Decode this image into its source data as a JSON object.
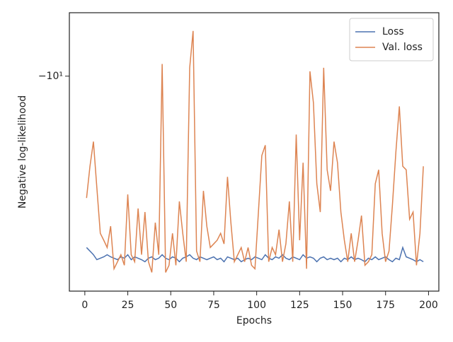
{
  "chart_data": {
    "type": "line",
    "xlabel": "Epochs",
    "ylabel": "Negative log-likelihood",
    "yscale": "symlog",
    "xlim": [
      -9,
      206
    ],
    "ylim": [
      -21.3,
      -8
    ],
    "xticks": [
      0,
      25,
      50,
      75,
      100,
      125,
      150,
      175,
      200
    ],
    "yticks": [
      {
        "value": -10,
        "label": "−10¹"
      }
    ],
    "legend": "upper right",
    "x": [
      1,
      3,
      5,
      7,
      9,
      11,
      13,
      15,
      17,
      19,
      21,
      23,
      25,
      27,
      29,
      31,
      33,
      35,
      37,
      39,
      41,
      43,
      45,
      47,
      49,
      51,
      53,
      55,
      57,
      59,
      61,
      63,
      65,
      67,
      69,
      71,
      73,
      75,
      77,
      79,
      81,
      83,
      85,
      87,
      89,
      91,
      93,
      95,
      97,
      99,
      101,
      103,
      105,
      107,
      109,
      111,
      113,
      115,
      117,
      119,
      121,
      123,
      125,
      127,
      129,
      131,
      133,
      135,
      137,
      139,
      141,
      143,
      145,
      147,
      149,
      151,
      153,
      155,
      157,
      159,
      161,
      163,
      165,
      167,
      169,
      171,
      173,
      175,
      177,
      179,
      181,
      183,
      185,
      187,
      189,
      191,
      193,
      195,
      197
    ],
    "series": [
      {
        "name": "Loss",
        "color": "#4c72b0",
        "values": [
          -18.27,
          -18.5,
          -18.74,
          -19.07,
          -18.97,
          -18.88,
          -18.74,
          -18.88,
          -18.97,
          -19.07,
          -18.88,
          -18.97,
          -18.74,
          -19.07,
          -18.88,
          -18.97,
          -19.07,
          -19.21,
          -18.97,
          -18.88,
          -19.07,
          -18.97,
          -18.74,
          -18.97,
          -19.07,
          -18.88,
          -18.97,
          -19.21,
          -18.97,
          -18.88,
          -18.74,
          -18.97,
          -19.07,
          -18.88,
          -18.97,
          -19.07,
          -18.97,
          -18.88,
          -19.07,
          -18.97,
          -19.21,
          -18.88,
          -18.97,
          -19.07,
          -18.97,
          -19.21,
          -19.07,
          -18.97,
          -19.07,
          -18.88,
          -18.97,
          -19.07,
          -18.74,
          -18.97,
          -19.07,
          -18.88,
          -18.97,
          -18.74,
          -18.97,
          -19.07,
          -18.88,
          -18.97,
          -19.07,
          -18.74,
          -18.97,
          -18.88,
          -18.97,
          -19.21,
          -18.97,
          -18.88,
          -19.07,
          -18.97,
          -19.07,
          -18.97,
          -19.21,
          -18.97,
          -19.07,
          -18.88,
          -19.07,
          -18.97,
          -19.07,
          -19.21,
          -18.97,
          -19.07,
          -18.88,
          -19.07,
          -18.97,
          -18.88,
          -19.07,
          -19.21,
          -18.97,
          -19.07,
          -18.27,
          -18.88,
          -18.97,
          -19.07,
          -19.21,
          -19.07,
          -19.21
        ]
      },
      {
        "name": "Val. loss",
        "color": "#dd8452",
        "values": [
          -15.35,
          -13.73,
          -12.59,
          -14.79,
          -17.38,
          -17.81,
          -18.27,
          -16.95,
          -19.69,
          -19.21,
          -18.74,
          -19.45,
          -15.16,
          -18.74,
          -19.21,
          -15.93,
          -18.74,
          -16.13,
          -19.21,
          -19.94,
          -16.74,
          -18.74,
          -9.58,
          -19.94,
          -19.45,
          -17.38,
          -19.45,
          -15.54,
          -17.38,
          -19.21,
          -9.71,
          -8.53,
          -18.5,
          -19.21,
          -14.97,
          -16.95,
          -18.27,
          -18.04,
          -17.81,
          -17.38,
          -18.04,
          -14.25,
          -16.74,
          -19.21,
          -18.74,
          -18.27,
          -19.21,
          -18.27,
          -19.45,
          -19.69,
          -16.13,
          -13.22,
          -12.75,
          -19.21,
          -18.27,
          -18.74,
          -17.16,
          -19.21,
          -18.04,
          -15.54,
          -19.21,
          -12.28,
          -17.81,
          -13.56,
          -19.69,
          -9.83,
          -10.98,
          -14.6,
          -16.13,
          -9.71,
          -13.9,
          -14.97,
          -12.59,
          -13.56,
          -16.13,
          -17.81,
          -19.21,
          -17.38,
          -19.21,
          -17.81,
          -16.33,
          -19.45,
          -19.21,
          -18.74,
          -14.6,
          -13.9,
          -17.38,
          -19.21,
          -18.5,
          -15.74,
          -13.06,
          -11.12,
          -13.73,
          -13.9,
          -16.54,
          -16.13,
          -19.45,
          -17.38,
          -13.73
        ]
      }
    ]
  }
}
